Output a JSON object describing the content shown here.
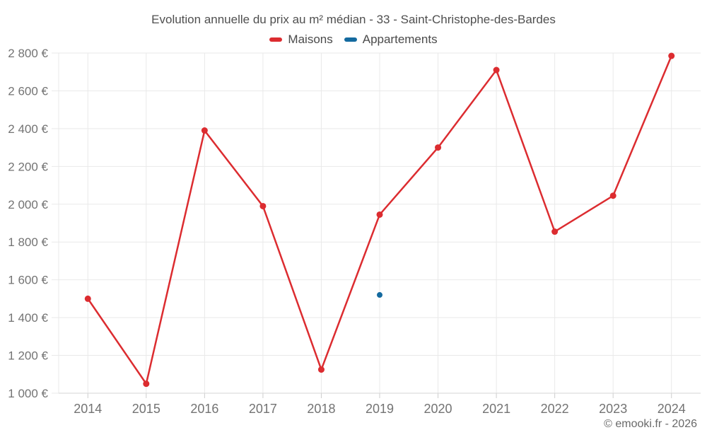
{
  "chart_data": {
    "type": "line",
    "title": "Evolution annuelle du prix au m² médian - 33 - Saint-Christophe-des-Bardes",
    "categories": [
      "2014",
      "2015",
      "2016",
      "2017",
      "2018",
      "2019",
      "2020",
      "2021",
      "2022",
      "2023",
      "2024"
    ],
    "series": [
      {
        "name": "Maisons",
        "color": "#dc2c30",
        "values": [
          1500,
          1050,
          2390,
          1990,
          1125,
          1945,
          2300,
          2710,
          1855,
          2045,
          2785
        ]
      },
      {
        "name": "Appartements",
        "color": "#146a9f",
        "values": [
          null,
          null,
          null,
          null,
          null,
          1520,
          null,
          null,
          null,
          null,
          null
        ]
      }
    ],
    "xlabel": "",
    "ylabel": "",
    "ylim": [
      1000,
      2800
    ],
    "y_ticks": [
      {
        "value": 1000,
        "label": "1 000 €"
      },
      {
        "value": 1200,
        "label": "1 200 €"
      },
      {
        "value": 1400,
        "label": "1 400 €"
      },
      {
        "value": 1600,
        "label": "1 600 €"
      },
      {
        "value": 1800,
        "label": "1 800 €"
      },
      {
        "value": 2000,
        "label": "2 000 €"
      },
      {
        "value": 2200,
        "label": "2 200 €"
      },
      {
        "value": 2400,
        "label": "2 400 €"
      },
      {
        "value": 2600,
        "label": "2 600 €"
      },
      {
        "value": 2800,
        "label": "2 800 €"
      }
    ],
    "grid": true,
    "legend_position": "top"
  },
  "footer": {
    "credit": "© emooki.fr - 2026"
  }
}
